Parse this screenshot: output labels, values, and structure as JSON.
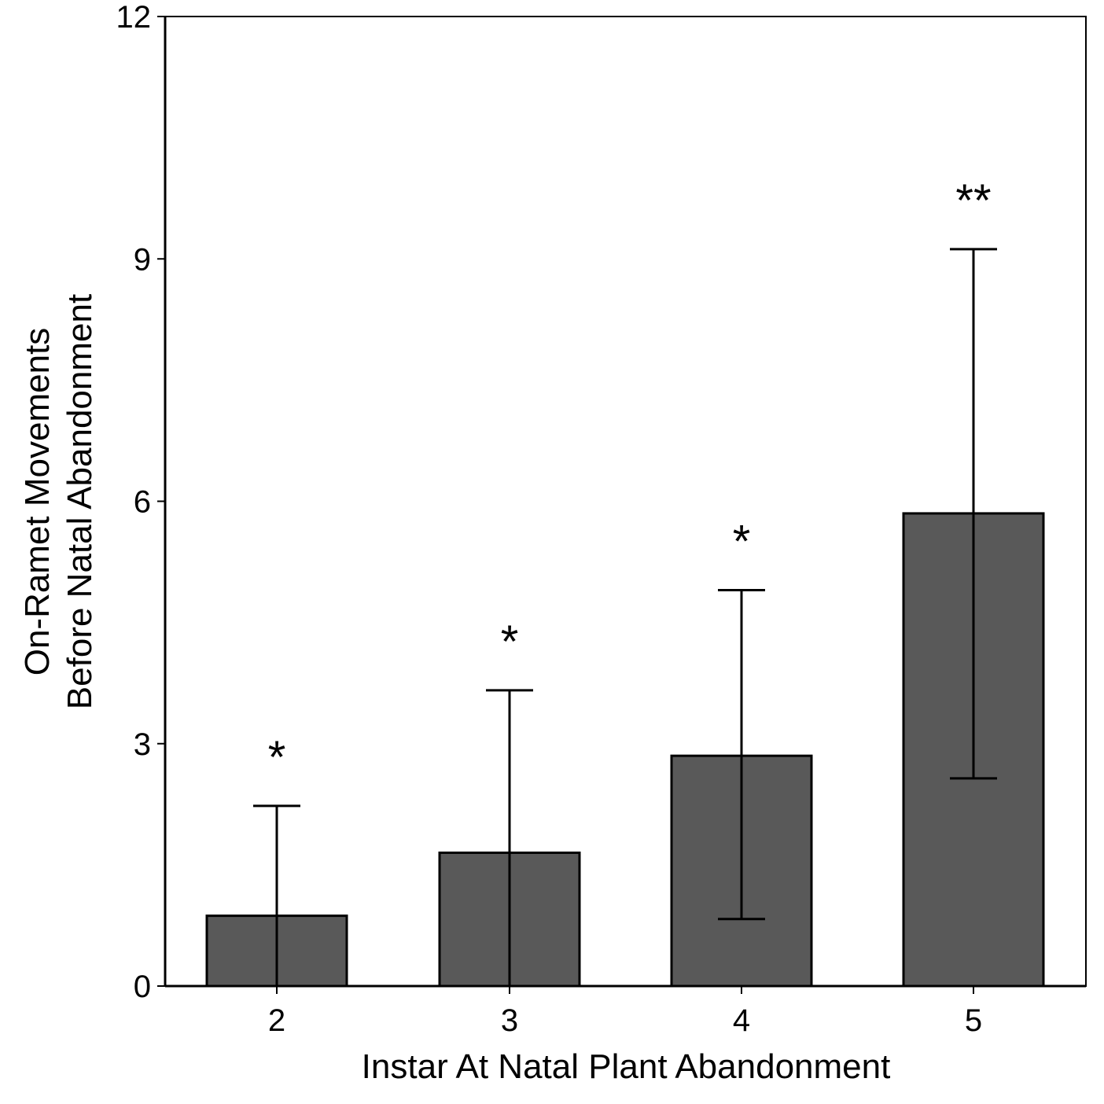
{
  "chart_data": {
    "type": "bar",
    "title": "",
    "xlabel": "Instar At Natal Plant Abandonment",
    "ylabel_lines": [
      "On-Ramet Movements",
      "Before Natal Abandonment"
    ],
    "categories": [
      "2",
      "3",
      "4",
      "5"
    ],
    "values": [
      0.87,
      1.65,
      2.85,
      5.85
    ],
    "error_upper": [
      2.23,
      3.66,
      4.9,
      9.12
    ],
    "error_lower": [
      0.0,
      0.0,
      0.83,
      2.57
    ],
    "significance": [
      "*",
      "*",
      "*",
      "**"
    ],
    "ylim": [
      0,
      12
    ],
    "yticks": [
      "0",
      "3",
      "6",
      "9",
      "12"
    ],
    "grid": false,
    "legend": "none",
    "bar_color": "#595959",
    "outline_color": "#000000"
  }
}
